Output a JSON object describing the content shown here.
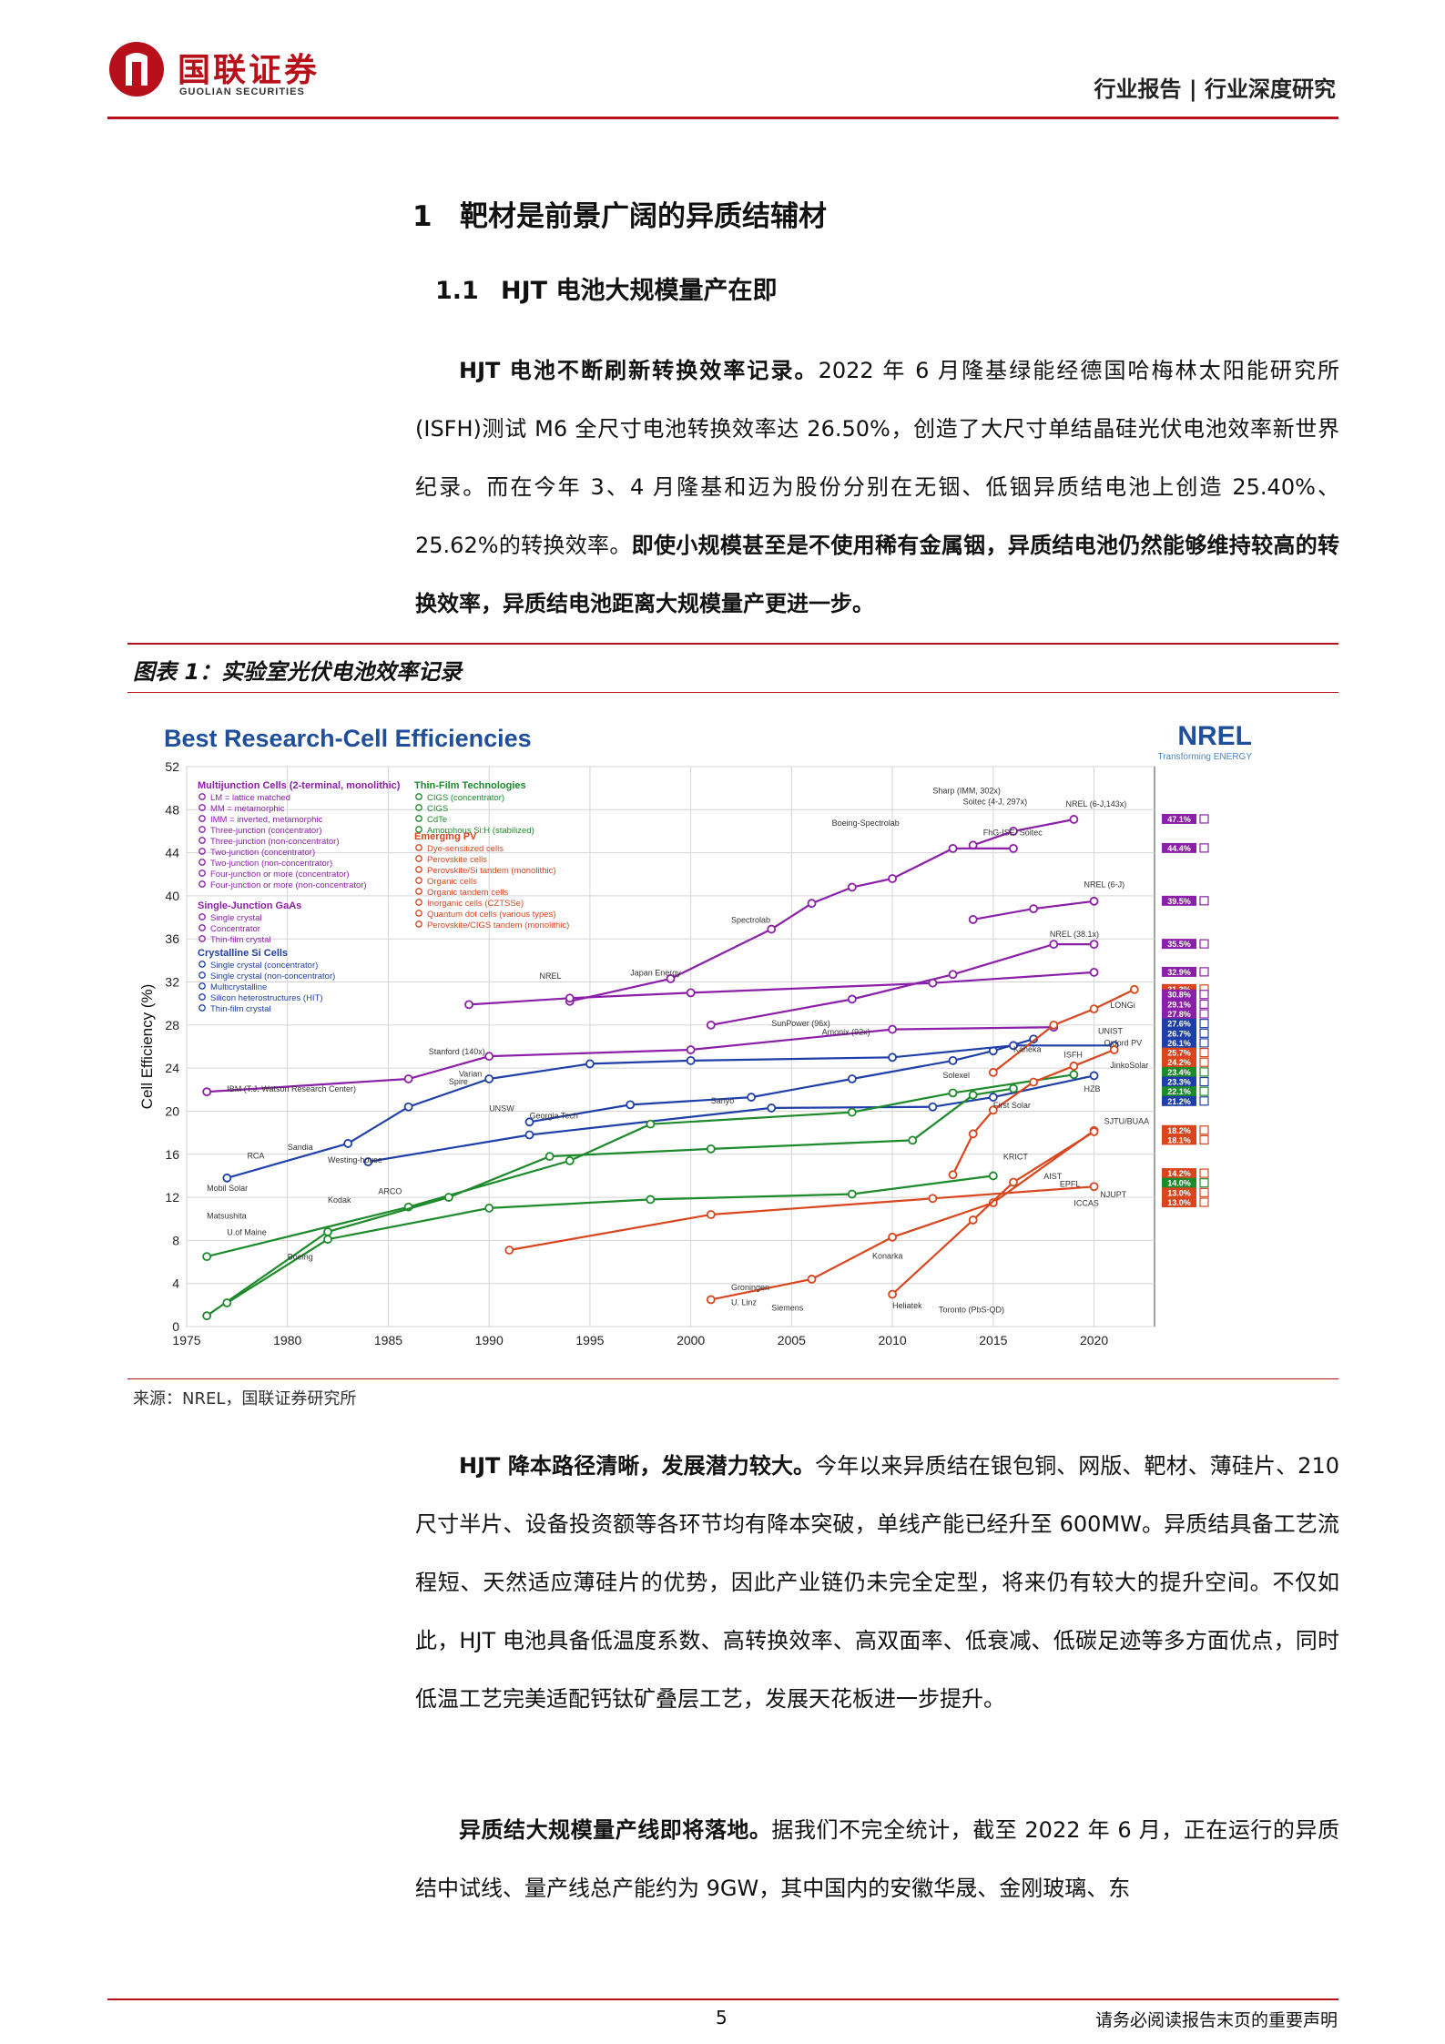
{
  "header": {
    "logo_cn": "国联证券",
    "logo_en": "GUOLIAN SECURITIES",
    "report_type": "行业报告 | 行业深度研究"
  },
  "section1": {
    "number": "1",
    "title": "靶材是前景广阔的异质结辅材"
  },
  "section1_1": {
    "number": "1.1",
    "title": "HJT 电池大规模量产在即"
  },
  "para1": {
    "bold_lead": "HJT 电池不断刷新转换效率记录。",
    "text": "2022 年 6 月隆基绿能经德国哈梅林太阳能研究所(ISFH)测试 M6 全尺寸电池转换效率达 26.50%，创造了大尺寸单结晶硅光伏电池效率新世界纪录。而在今年 3、4 月隆基和迈为股份分别在无铟、低铟异质结电池上创造 25.40%、25.62%的转换效率。",
    "bold_tail": "即使小规模甚至是不使用稀有金属铟，异质结电池仍然能够维持较高的转换效率，异质结电池距离大规模量产更进一步。"
  },
  "figure": {
    "title": "图表 1：实验室光伏电池效率记录",
    "source": "来源：NREL，国联证券研究所"
  },
  "chart_data": {
    "type": "line",
    "title": "Best Research-Cell Efficiencies",
    "brand": "NREL",
    "brand_tagline": "Transforming ENERGY",
    "ylabel": "Cell Efficiency (%)",
    "xlabel": "",
    "xlim": [
      1975,
      2023
    ],
    "ylim": [
      0,
      52
    ],
    "x_ticks": [
      1975,
      1980,
      1985,
      1990,
      1995,
      2000,
      2005,
      2010,
      2015,
      2020
    ],
    "y_ticks": [
      0,
      4,
      8,
      12,
      16,
      20,
      24,
      28,
      32,
      36,
      40,
      44,
      48,
      52
    ],
    "grid": true,
    "legend_groups": [
      {
        "title": "Multijunction Cells (2-terminal, monolithic)",
        "color": "#8b1fa8",
        "items": [
          "LM = lattice matched",
          "MM = metamorphic",
          "IMM = inverted, metamorphic",
          "Three-junction (concentrator)",
          "Three-junction (non-concentrator)",
          "Two-junction (concentrator)",
          "Two-junction (non-concentrator)",
          "Four-junction or more (concentrator)",
          "Four-junction or more (non-concentrator)"
        ]
      },
      {
        "title": "Single-Junction GaAs",
        "color": "#8b1fa8",
        "items": [
          "Single crystal",
          "Concentrator",
          "Thin-film crystal"
        ]
      },
      {
        "title": "Crystalline Si Cells",
        "color": "#1f3fa8",
        "items": [
          "Single crystal (concentrator)",
          "Single crystal (non-concentrator)",
          "Multicrystalline",
          "Silicon heterostructures (HIT)",
          "Thin-film crystal"
        ]
      },
      {
        "title": "Thin-Film Technologies",
        "color": "#1d8a2b",
        "items": [
          "CIGS (concentrator)",
          "CIGS",
          "CdTe",
          "Amorphous Si:H (stabilized)"
        ]
      },
      {
        "title": "Emerging PV",
        "color": "#d9461e",
        "items": [
          "Dye-sensitized cells",
          "Perovskite cells",
          "Perovskite/Si tandem (monolithic)",
          "Organic cells",
          "Organic tandem cells",
          "Inorganic cells (CZTSSe)",
          "Quantum dot cells (various types)",
          "Perovskite/CIGS tandem (monolithic)"
        ]
      }
    ],
    "series": [
      {
        "name": "Four-junction or more (concentrator)",
        "color": "#8b1fa8",
        "x": [
          2014,
          2016,
          2019
        ],
        "y": [
          44.7,
          46.0,
          47.1
        ]
      },
      {
        "name": "Three-junction (concentrator)",
        "color": "#8b1fa8",
        "x": [
          1994,
          1999,
          2004,
          2006,
          2008,
          2010,
          2013,
          2016
        ],
        "y": [
          30.2,
          32.3,
          36.9,
          39.3,
          40.8,
          41.6,
          44.4,
          44.4
        ]
      },
      {
        "name": "Four-junction or more (non-concentrator)",
        "color": "#8b1fa8",
        "x": [
          2014,
          2017,
          2020
        ],
        "y": [
          37.8,
          38.8,
          39.5
        ]
      },
      {
        "name": "Three-junction (non-concentrator)",
        "color": "#8b1fa8",
        "x": [
          2001,
          2008,
          2013,
          2018,
          2020
        ],
        "y": [
          28.0,
          30.4,
          32.7,
          35.5,
          35.5
        ]
      },
      {
        "name": "Two-junction (concentrator)",
        "color": "#8b1fa8",
        "x": [
          1989,
          1994,
          2000,
          2012,
          2020
        ],
        "y": [
          29.9,
          30.5,
          31.0,
          31.9,
          32.9
        ]
      },
      {
        "name": "Single crystal GaAs",
        "color": "#8b1fa8",
        "x": [
          1976,
          1986,
          1990,
          2000,
          2010,
          2018
        ],
        "y": [
          21.8,
          23.0,
          25.1,
          25.7,
          27.6,
          27.8
        ]
      },
      {
        "name": "Silicon heterostructures (HIT)",
        "color": "#1f3fa8",
        "x": [
          1992,
          1997,
          2003,
          2008,
          2013,
          2015,
          2017
        ],
        "y": [
          19.0,
          20.6,
          21.3,
          23.0,
          24.7,
          25.6,
          26.7
        ]
      },
      {
        "name": "Single crystal Si (non-concentrator)",
        "color": "#1f3fa8",
        "x": [
          1977,
          1983,
          1986,
          1990,
          1995,
          2000,
          2010,
          2016,
          2021
        ],
        "y": [
          13.8,
          17.0,
          20.4,
          23.0,
          24.4,
          24.7,
          25.0,
          26.1,
          26.1
        ]
      },
      {
        "name": "Multicrystalline Si",
        "color": "#1f3fa8",
        "x": [
          1984,
          1992,
          2004,
          2012,
          2015,
          2020
        ],
        "y": [
          15.3,
          17.8,
          20.3,
          20.4,
          21.3,
          23.3
        ]
      },
      {
        "name": "CIGS",
        "color": "#1d8a2b",
        "x": [
          1976,
          1986,
          1994,
          1998,
          2008,
          2013,
          2019
        ],
        "y": [
          6.5,
          11.1,
          15.4,
          18.8,
          19.9,
          21.7,
          23.4
        ]
      },
      {
        "name": "CdTe",
        "color": "#1d8a2b",
        "x": [
          1976,
          1982,
          1988,
          1993,
          2001,
          2011,
          2014,
          2016
        ],
        "y": [
          1.0,
          8.8,
          12.0,
          15.8,
          16.5,
          17.3,
          21.5,
          22.1
        ]
      },
      {
        "name": "Amorphous Si:H (stabilized)",
        "color": "#1d8a2b",
        "x": [
          1977,
          1982,
          1990,
          1998,
          2008,
          2015
        ],
        "y": [
          2.2,
          8.1,
          11.0,
          11.8,
          12.3,
          14.0
        ]
      },
      {
        "name": "Perovskite cells",
        "color": "#d9461e",
        "x": [
          2013,
          2014,
          2015,
          2017,
          2019,
          2021
        ],
        "y": [
          14.1,
          17.9,
          20.1,
          22.7,
          24.2,
          25.7
        ]
      },
      {
        "name": "Perovskite/Si tandem (monolithic)",
        "color": "#d9461e",
        "x": [
          2015,
          2018,
          2020,
          2022
        ],
        "y": [
          23.6,
          28.0,
          29.5,
          31.3
        ]
      },
      {
        "name": "Organic cells",
        "color": "#d9461e",
        "x": [
          2001,
          2006,
          2010,
          2015,
          2020
        ],
        "y": [
          2.5,
          4.4,
          8.3,
          11.5,
          18.2
        ]
      },
      {
        "name": "Dye-sensitized cells",
        "color": "#d9461e",
        "x": [
          1991,
          2001,
          2012,
          2020
        ],
        "y": [
          7.1,
          10.4,
          11.9,
          13.0
        ]
      },
      {
        "name": "Quantum dot cells (various types)",
        "color": "#d9461e",
        "x": [
          2010,
          2014,
          2016,
          2020
        ],
        "y": [
          3.0,
          9.9,
          13.4,
          18.1
        ]
      }
    ],
    "record_badges": [
      {
        "value": "47.1%",
        "color": "#8b1fa8"
      },
      {
        "value": "44.4%",
        "color": "#8b1fa8"
      },
      {
        "value": "39.5%",
        "color": "#8b1fa8"
      },
      {
        "value": "35.5%",
        "color": "#8b1fa8"
      },
      {
        "value": "32.9%",
        "color": "#8b1fa8"
      },
      {
        "value": "31.3%",
        "color": "#d9461e"
      },
      {
        "value": "30.8%",
        "color": "#8b1fa8"
      },
      {
        "value": "29.1%",
        "color": "#8b1fa8"
      },
      {
        "value": "27.8%",
        "color": "#8b1fa8"
      },
      {
        "value": "27.6%",
        "color": "#1f3fa8"
      },
      {
        "value": "26.7%",
        "color": "#1f3fa8"
      },
      {
        "value": "26.1%",
        "color": "#1f3fa8"
      },
      {
        "value": "25.7%",
        "color": "#d9461e"
      },
      {
        "value": "24.2%",
        "color": "#d9461e"
      },
      {
        "value": "23.4%",
        "color": "#1d8a2b"
      },
      {
        "value": "23.3%",
        "color": "#1f3fa8"
      },
      {
        "value": "22.1%",
        "color": "#1d8a2b"
      },
      {
        "value": "21.2%",
        "color": "#1f3fa8"
      },
      {
        "value": "18.2%",
        "color": "#d9461e"
      },
      {
        "value": "18.1%",
        "color": "#d9461e"
      },
      {
        "value": "14.2%",
        "color": "#d9461e"
      },
      {
        "value": "14.0%",
        "color": "#1d8a2b"
      },
      {
        "value": "13.0%",
        "color": "#d9461e"
      },
      {
        "value": "13.0%",
        "color": "#d9461e"
      }
    ],
    "annotations": [
      "Sharp (IMM, 302x)",
      "Soitec (4-J, 297x)",
      "FhG-ISE/ Soitec",
      "NREL (6-J,143x)",
      "NREL (6-J)",
      "Boeing-Spectrolab",
      "Spectrolab",
      "NREL",
      "NREL (38.1x)",
      "Amonix (92x)",
      "Kaneka",
      "ISFH",
      "UNIST",
      "Japan Energy",
      "IBM (T.J. Watson Research Center)",
      "RCA",
      "Mobil Solar",
      "Matsushita",
      "U.of Maine",
      "Boeing",
      "Kodak",
      "ARCO",
      "Sandia",
      "Westing-house",
      "Varian",
      "Stanford (140x)",
      "UNSW",
      "Spire",
      "Georgia Tech",
      "Sanyo",
      "SunPower (96x)",
      "Solexel",
      "First Solar",
      "NJUPT",
      "EPFL",
      "U. Linz",
      "Groningen",
      "Siemens",
      "Konarka",
      "Heliatek",
      "Toronto (PbS-QD)",
      "ICCAS",
      "KRICT",
      "AIST",
      "SJTU/BUAA",
      "LONGi",
      "Oxford PV",
      "HZB",
      "JinkoSolar"
    ]
  },
  "para2": {
    "bold_lead": "HJT 降本路径清晰，发展潜力较大。",
    "text": "今年以来异质结在银包铜、网版、靶材、薄硅片、210 尺寸半片、设备投资额等各环节均有降本突破，单线产能已经升至 600MW。异质结具备工艺流程短、天然适应薄硅片的优势，因此产业链仍未完全定型，将来仍有较大的提升空间。不仅如此，HJT 电池具备低温度系数、高转换效率、高双面率、低衰减、低碳足迹等多方面优点，同时低温工艺完美适配钙钛矿叠层工艺，发展天花板进一步提升。"
  },
  "para3": {
    "bold_lead": "异质结大规模量产线即将落地。",
    "text": "据我们不完全统计，截至 2022 年 6 月，正在运行的异质结中试线、量产线总产能约为 9GW，其中国内的安徽华晟、金刚玻璃、东"
  },
  "footer": {
    "page_number": "5",
    "note": "请务必阅读报告末页的重要声明"
  }
}
